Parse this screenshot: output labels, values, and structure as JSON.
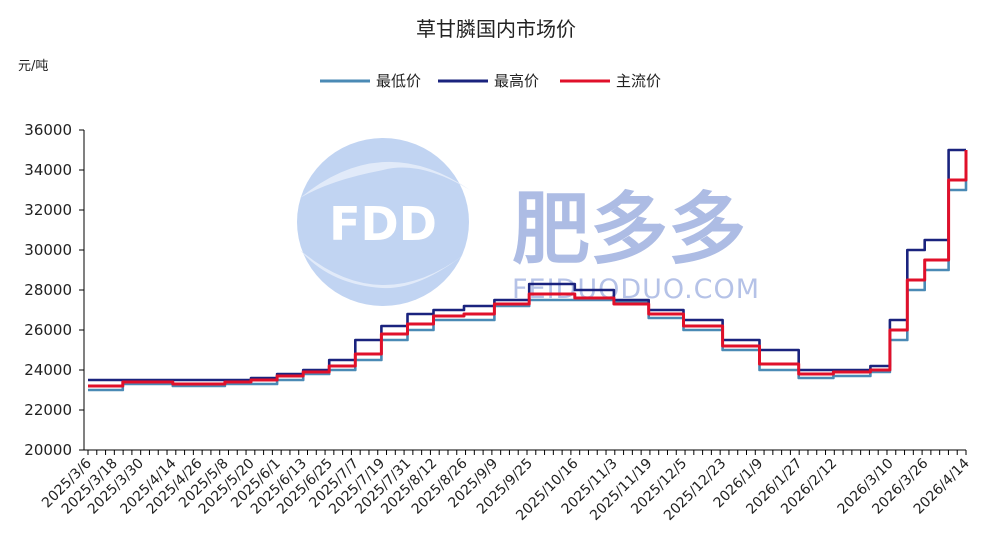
{
  "chart_data": {
    "type": "line",
    "title": "草甘膦国内市场价",
    "ylabel": "元/吨",
    "ylim": [
      20000,
      36000
    ],
    "yticks": [
      20000,
      22000,
      24000,
      26000,
      28000,
      30000,
      32000,
      34000,
      36000
    ],
    "xticks": [
      "2025/3/6",
      "2025/3/18",
      "2025/3/30",
      "2025/4/14",
      "2025/4/26",
      "2025/5/8",
      "2025/5/20",
      "2025/6/1",
      "2025/6/13",
      "2025/6/25",
      "2025/7/7",
      "2025/7/19",
      "2025/7/31",
      "2025/8/12",
      "2025/8/26",
      "2025/9/9",
      "2025/9/25",
      "2025/10/16",
      "2025/11/3",
      "2025/11/19",
      "2025/12/5",
      "2025/12/23",
      "2026/1/9",
      "2026/1/27",
      "2026/2/12",
      "2026/3/10",
      "2026/3/26",
      "2026/4/14"
    ],
    "legend_position": "top-center",
    "grid": false,
    "series": [
      {
        "name": "最低价",
        "color": "#4a8ab5",
        "points": [
          [
            "2025/3/6",
            23000
          ],
          [
            "2025/3/18",
            23000
          ],
          [
            "2025/3/22",
            23300
          ],
          [
            "2025/3/30",
            23300
          ],
          [
            "2025/4/14",
            23200
          ],
          [
            "2025/4/26",
            23200
          ],
          [
            "2025/5/8",
            23300
          ],
          [
            "2025/5/20",
            23300
          ],
          [
            "2025/6/1",
            23500
          ],
          [
            "2025/6/13",
            23800
          ],
          [
            "2025/6/25",
            24000
          ],
          [
            "2025/7/7",
            24500
          ],
          [
            "2025/7/19",
            25500
          ],
          [
            "2025/7/31",
            26000
          ],
          [
            "2025/8/12",
            26500
          ],
          [
            "2025/8/26",
            26500
          ],
          [
            "2025/9/9",
            27200
          ],
          [
            "2025/9/25",
            27500
          ],
          [
            "2025/10/16",
            27500
          ],
          [
            "2025/11/3",
            27400
          ],
          [
            "2025/11/19",
            26600
          ],
          [
            "2025/12/5",
            26000
          ],
          [
            "2025/12/23",
            25000
          ],
          [
            "2026/1/9",
            24000
          ],
          [
            "2026/1/27",
            23600
          ],
          [
            "2026/2/12",
            23700
          ],
          [
            "2026/3/1",
            23900
          ],
          [
            "2026/3/10",
            25500
          ],
          [
            "2026/3/18",
            28000
          ],
          [
            "2026/3/26",
            29000
          ],
          [
            "2026/4/6",
            33000
          ],
          [
            "2026/4/14",
            33500
          ]
        ]
      },
      {
        "name": "最高价",
        "color": "#1a237e",
        "points": [
          [
            "2025/3/6",
            23500
          ],
          [
            "2025/3/18",
            23500
          ],
          [
            "2025/3/30",
            23500
          ],
          [
            "2025/4/14",
            23500
          ],
          [
            "2025/4/26",
            23500
          ],
          [
            "2025/5/8",
            23500
          ],
          [
            "2025/5/20",
            23600
          ],
          [
            "2025/6/1",
            23800
          ],
          [
            "2025/6/13",
            24000
          ],
          [
            "2025/6/25",
            24500
          ],
          [
            "2025/7/7",
            25500
          ],
          [
            "2025/7/19",
            26200
          ],
          [
            "2025/7/31",
            26800
          ],
          [
            "2025/8/12",
            27000
          ],
          [
            "2025/8/26",
            27200
          ],
          [
            "2025/9/9",
            27500
          ],
          [
            "2025/9/25",
            28300
          ],
          [
            "2025/10/16",
            28000
          ],
          [
            "2025/11/3",
            27500
          ],
          [
            "2025/11/19",
            27000
          ],
          [
            "2025/12/5",
            26500
          ],
          [
            "2025/12/23",
            25500
          ],
          [
            "2026/1/9",
            25000
          ],
          [
            "2026/1/27",
            24000
          ],
          [
            "2026/2/12",
            24000
          ],
          [
            "2026/3/1",
            24200
          ],
          [
            "2026/3/10",
            26500
          ],
          [
            "2026/3/18",
            30000
          ],
          [
            "2026/3/26",
            30500
          ],
          [
            "2026/4/6",
            35000
          ],
          [
            "2026/4/14",
            35000
          ]
        ]
      },
      {
        "name": "主流价",
        "color": "#e0102a",
        "points": [
          [
            "2025/3/6",
            23200
          ],
          [
            "2025/3/18",
            23200
          ],
          [
            "2025/3/22",
            23400
          ],
          [
            "2025/3/30",
            23400
          ],
          [
            "2025/4/14",
            23300
          ],
          [
            "2025/4/26",
            23300
          ],
          [
            "2025/5/8",
            23400
          ],
          [
            "2025/5/20",
            23500
          ],
          [
            "2025/6/1",
            23700
          ],
          [
            "2025/6/13",
            23900
          ],
          [
            "2025/6/25",
            24200
          ],
          [
            "2025/7/7",
            24800
          ],
          [
            "2025/7/19",
            25800
          ],
          [
            "2025/7/31",
            26300
          ],
          [
            "2025/8/12",
            26700
          ],
          [
            "2025/8/26",
            26800
          ],
          [
            "2025/9/9",
            27300
          ],
          [
            "2025/9/25",
            27800
          ],
          [
            "2025/10/16",
            27600
          ],
          [
            "2025/11/3",
            27300
          ],
          [
            "2025/11/19",
            26800
          ],
          [
            "2025/12/5",
            26200
          ],
          [
            "2025/12/23",
            25200
          ],
          [
            "2026/1/9",
            24300
          ],
          [
            "2026/1/27",
            23800
          ],
          [
            "2026/2/12",
            23900
          ],
          [
            "2026/3/1",
            24000
          ],
          [
            "2026/3/10",
            26000
          ],
          [
            "2026/3/18",
            28500
          ],
          [
            "2026/3/26",
            29500
          ],
          [
            "2026/4/6",
            33500
          ],
          [
            "2026/4/14",
            35000
          ]
        ]
      }
    ]
  },
  "watermark": {
    "logo_text": "FDD",
    "brand_text": "肥多多",
    "brand_sub": "FEIDUODUO.COM"
  },
  "colors": {
    "axis": "#000000",
    "watermark_blue": "#9fb1e0"
  }
}
